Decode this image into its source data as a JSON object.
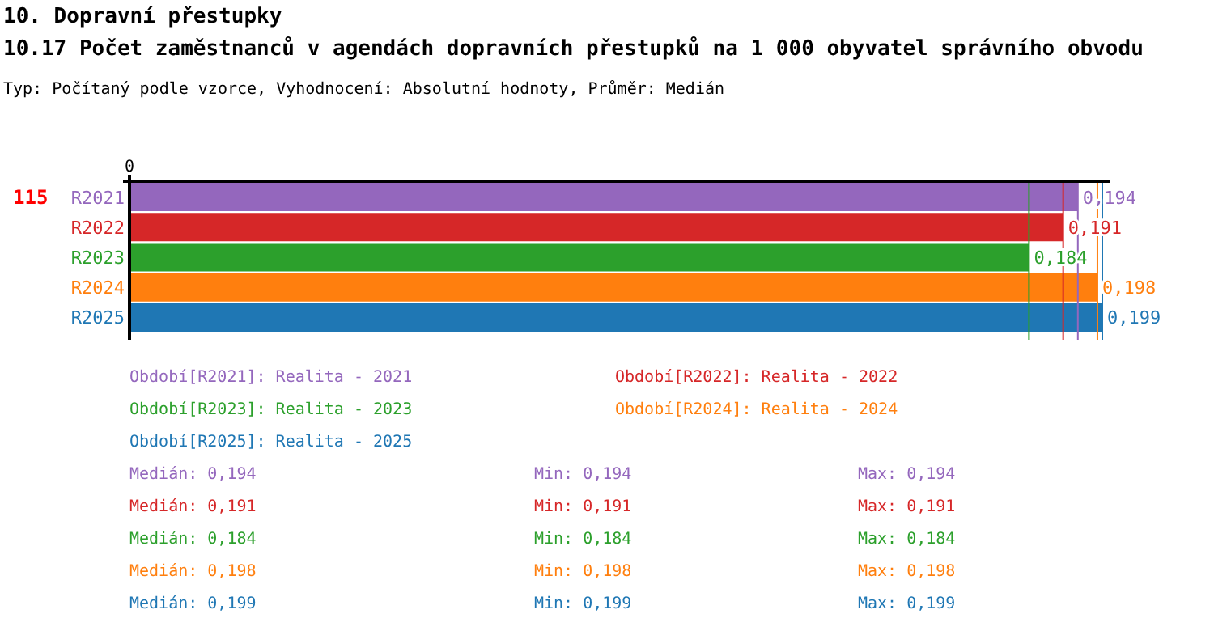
{
  "chart_data": {
    "type": "bar",
    "orientation": "horizontal",
    "title": "10. Dopravní přestupky",
    "subtitle": "10.17 Počet zaměstnanců v agendách dopravních přestupků na 1 000 obyvatel správního obvodu",
    "categories": [
      "R2021",
      "R2022",
      "R2023",
      "R2024",
      "R2025"
    ],
    "values": [
      0.194,
      0.191,
      0.184,
      0.198,
      0.199
    ],
    "value_labels": [
      "0,194",
      "0,191",
      "0,184",
      "0,198",
      "0,199"
    ],
    "colors": [
      "#9467bd",
      "#d62728",
      "#2ca02c",
      "#ff7f0e",
      "#1f77b4"
    ],
    "ref_lines": [
      {
        "axis": "x",
        "value": 0.194,
        "color": "#9467bd"
      },
      {
        "axis": "x",
        "value": 0.191,
        "color": "#d62728"
      },
      {
        "axis": "x",
        "value": 0.184,
        "color": "#2ca02c"
      },
      {
        "axis": "x",
        "value": 0.198,
        "color": "#ff7f0e"
      },
      {
        "axis": "x",
        "value": 0.199,
        "color": "#1f77b4"
      }
    ],
    "annotations": [
      "Typ: Počítaný podle vzorce, Vyhodnocení: Absolutní hodnoty, Průměr: Medián",
      "115",
      "0",
      "Období[R2021]: Realita - 2021",
      "Období[R2022]: Realita - 2022",
      "Období[R2023]: Realita - 2023",
      "Období[R2024]: Realita - 2024",
      "Období[R2025]: Realita - 2025",
      "Medián: 0,194",
      "Min: 0,194",
      "Max: 0,194",
      "Medián: 0,191",
      "Min: 0,191",
      "Max: 0,191",
      "Medián: 0,184",
      "Min: 0,184",
      "Max: 0,184",
      "Medián: 0,198",
      "Min: 0,198",
      "Max: 0,198",
      "Medián: 0,199",
      "Min: 0,199",
      "Max: 0,199"
    ]
  }
}
